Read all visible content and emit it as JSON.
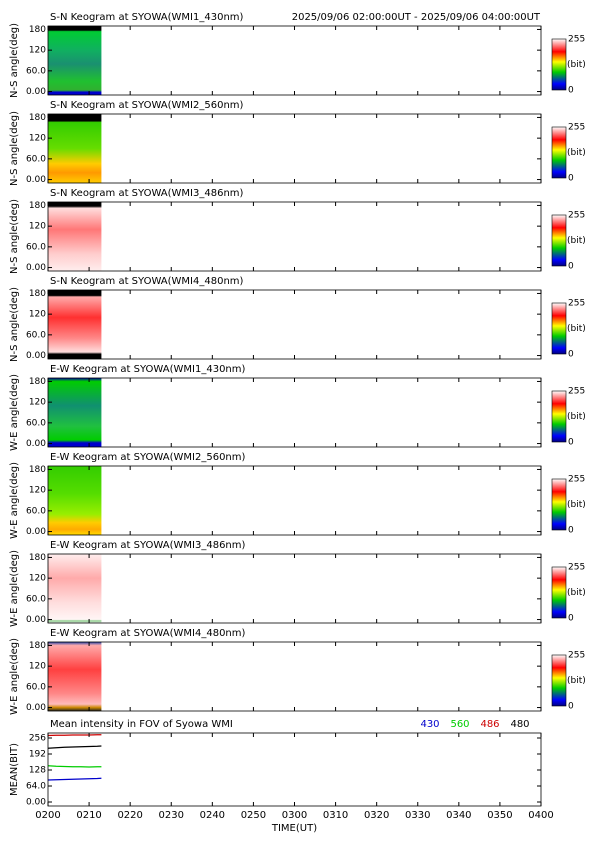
{
  "chart_data": [
    {
      "type": "keogram",
      "title": "S-N Keogram at SYOWA(WMI1_430nm)",
      "subtitle": "2025/09/06 02:00:00UT - 2025/09/06 04:00:00UT",
      "ylabel": "N-S angle(deg)",
      "ylim": [
        -10,
        190
      ],
      "yticks": [
        {
          "value": 0,
          "label": "0.00"
        },
        {
          "value": 60,
          "label": "60.0"
        },
        120,
        180
      ],
      "clim": [
        0,
        255
      ],
      "cticks": [
        0,
        255
      ],
      "clabel": "(bit)"
    },
    {
      "type": "keogram",
      "title": "S-N Keogram at SYOWA(WMI2_560nm)",
      "ylabel": "N-S angle(deg)",
      "ylim": [
        -10,
        190
      ],
      "yticks": [
        {
          "value": 0,
          "label": "0.00"
        },
        {
          "value": 60,
          "label": "60.0"
        },
        120,
        180
      ],
      "clim": [
        0,
        255
      ],
      "cticks": [
        0,
        255
      ],
      "clabel": "(bit)"
    },
    {
      "type": "keogram",
      "title": "S-N Keogram at SYOWA(WMI3_486nm)",
      "ylabel": "N-S angle(deg)",
      "ylim": [
        -10,
        190
      ],
      "yticks": [
        {
          "value": 0,
          "label": "0.00"
        },
        {
          "value": 60,
          "label": "60.0"
        },
        120,
        180
      ],
      "clim": [
        0,
        255
      ],
      "cticks": [
        0,
        255
      ],
      "clabel": "(bit)"
    },
    {
      "type": "keogram",
      "title": "S-N Keogram at SYOWA(WMI4_480nm)",
      "ylabel": "N-S angle(deg)",
      "ylim": [
        -10,
        190
      ],
      "yticks": [
        {
          "value": 0,
          "label": "0.00"
        },
        {
          "value": 60,
          "label": "60.0"
        },
        120,
        180
      ],
      "clim": [
        0,
        255
      ],
      "cticks": [
        0,
        255
      ],
      "clabel": "(bit)"
    },
    {
      "type": "keogram",
      "title": "E-W Keogram at SYOWA(WMI1_430nm)",
      "ylabel": "W-E angle(deg)",
      "ylim": [
        -10,
        190
      ],
      "yticks": [
        {
          "value": 0,
          "label": "0.00"
        },
        {
          "value": 60,
          "label": "60.0"
        },
        120,
        180
      ],
      "clim": [
        0,
        255
      ],
      "cticks": [
        0,
        255
      ],
      "clabel": "(bit)"
    },
    {
      "type": "keogram",
      "title": "E-W Keogram at SYOWA(WMI2_560nm)",
      "ylabel": "W-E angle(deg)",
      "ylim": [
        -10,
        190
      ],
      "yticks": [
        {
          "value": 0,
          "label": "0.00"
        },
        {
          "value": 60,
          "label": "60.0"
        },
        120,
        180
      ],
      "clim": [
        0,
        255
      ],
      "cticks": [
        0,
        255
      ],
      "clabel": "(bit)"
    },
    {
      "type": "keogram",
      "title": "E-W Keogram at SYOWA(WMI3_486nm)",
      "ylabel": "W-E angle(deg)",
      "ylim": [
        -10,
        190
      ],
      "yticks": [
        {
          "value": 0,
          "label": "0.00"
        },
        {
          "value": 60,
          "label": "60.0"
        },
        120,
        180
      ],
      "clim": [
        0,
        255
      ],
      "cticks": [
        0,
        255
      ],
      "clabel": "(bit)"
    },
    {
      "type": "keogram",
      "title": "E-W Keogram at SYOWA(WMI4_480nm)",
      "ylabel": "W-E angle(deg)",
      "ylim": [
        -10,
        190
      ],
      "yticks": [
        {
          "value": 0,
          "label": "0.00"
        },
        {
          "value": 60,
          "label": "60.0"
        },
        120,
        180
      ],
      "clim": [
        0,
        255
      ],
      "cticks": [
        0,
        255
      ],
      "clabel": "(bit)"
    },
    {
      "type": "line",
      "title": "Mean intensity in FOV of Syowa WMI",
      "ylabel": "MEAN(BIT)",
      "xlabel": "TIME(UT)",
      "x": [
        120,
        122,
        124,
        126,
        128,
        130,
        132,
        133
      ],
      "series": [
        {
          "name": "430",
          "color": "#0000cc",
          "values": [
            88,
            89,
            90,
            91,
            92,
            93,
            94,
            95
          ]
        },
        {
          "name": "560",
          "color": "#00cc00",
          "values": [
            145,
            143,
            142,
            141,
            141,
            140,
            141,
            141
          ]
        },
        {
          "name": "486",
          "color": "#cc0000",
          "values": [
            266,
            267,
            267,
            268,
            268,
            268,
            269,
            269
          ]
        },
        {
          "name": "480",
          "color": "#000000",
          "values": [
            215,
            217,
            219,
            220,
            221,
            222,
            223,
            224
          ]
        }
      ],
      "ylim": [
        -16,
        276
      ],
      "yticks": [
        {
          "value": 0,
          "label": "0.00"
        },
        {
          "value": 64,
          "label": "64.0"
        },
        128,
        192,
        256
      ],
      "xlim": [
        120,
        240
      ],
      "xticks": [
        {
          "value": 120,
          "label": "0200"
        },
        {
          "value": 130,
          "label": "0210"
        },
        {
          "value": 140,
          "label": "0220"
        },
        {
          "value": 150,
          "label": "0230"
        },
        {
          "value": 160,
          "label": "0240"
        },
        {
          "value": 170,
          "label": "0250"
        },
        {
          "value": 180,
          "label": "0300"
        },
        {
          "value": 190,
          "label": "0310"
        },
        {
          "value": 200,
          "label": "0320"
        },
        {
          "value": 210,
          "label": "0330"
        },
        {
          "value": 220,
          "label": "0340"
        },
        {
          "value": 230,
          "label": "0350"
        },
        {
          "value": 240,
          "label": "0400"
        }
      ]
    }
  ]
}
